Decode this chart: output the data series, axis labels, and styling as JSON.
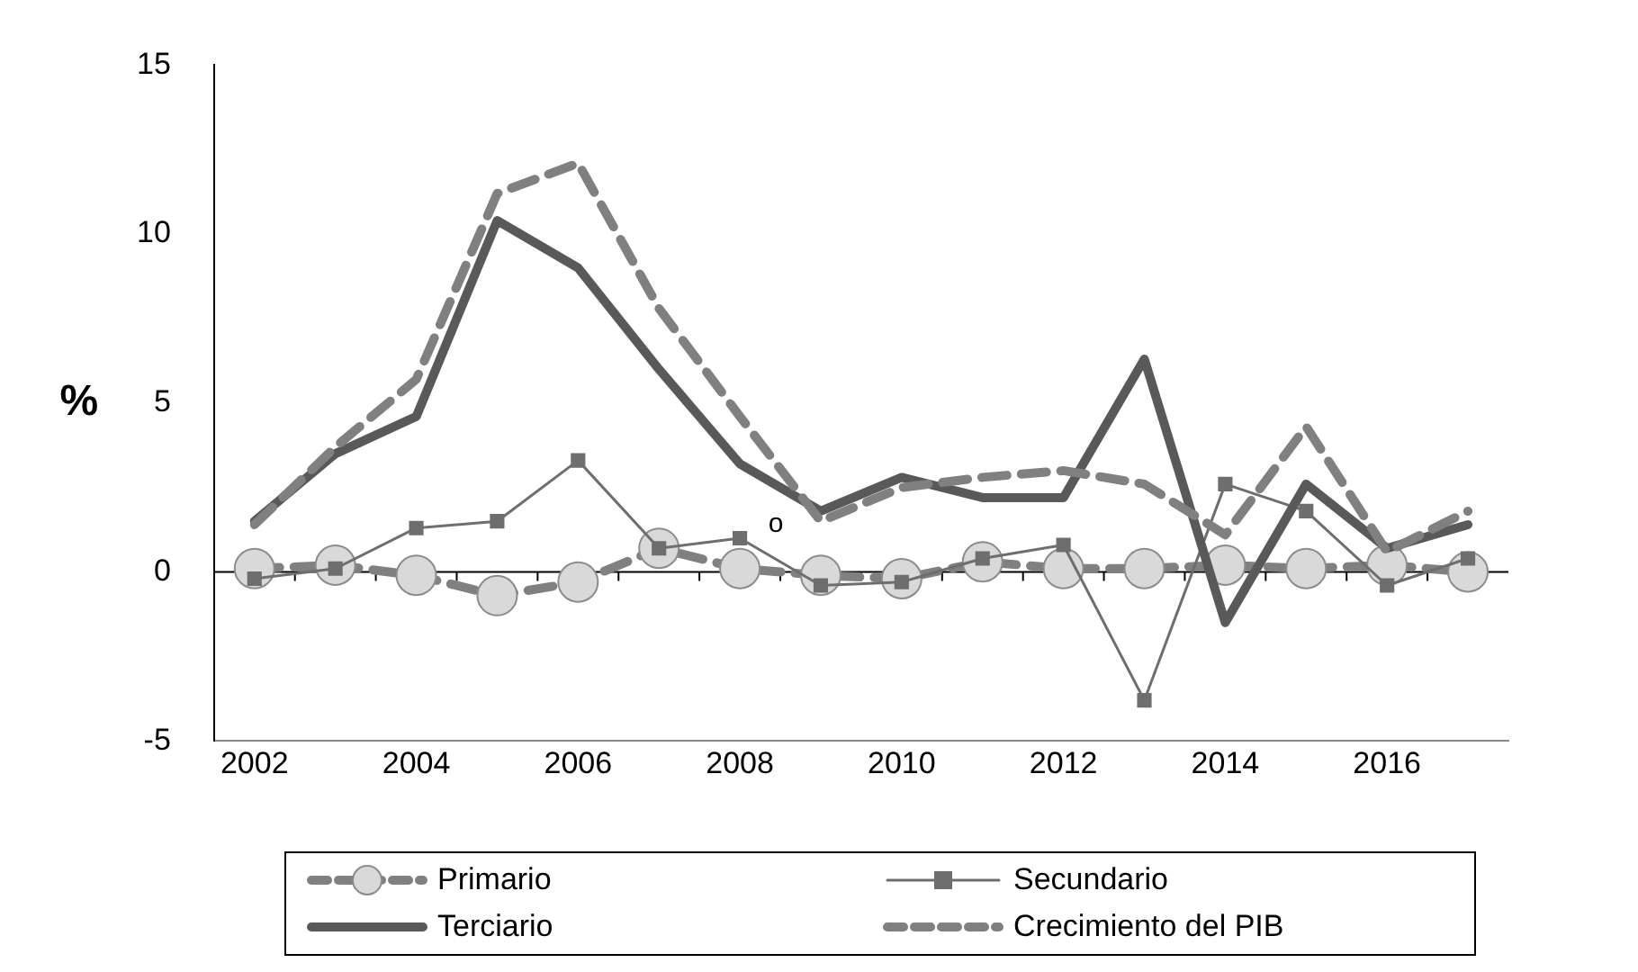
{
  "chart_data": {
    "type": "line",
    "ylabel": "%",
    "categories": [
      "2002",
      null,
      "2004",
      null,
      "2006",
      null,
      "2008",
      null,
      "2010",
      null,
      "2012",
      null,
      "2014",
      null,
      "2016",
      null
    ],
    "series": [
      {
        "name": "Primario",
        "color": "#808080",
        "marker": "circle",
        "line_style": "dashed",
        "values": [
          0.1,
          0.2,
          -0.1,
          -0.7,
          -0.3,
          0.7,
          0.1,
          -0.1,
          -0.2,
          0.3,
          0.1,
          0.1,
          0.2,
          0.1,
          0.2,
          0.0
        ]
      },
      {
        "name": "Secundario",
        "color": "#6e6e6e",
        "marker": "square",
        "line_style": "solid",
        "values": [
          -0.2,
          0.1,
          1.3,
          1.5,
          3.3,
          0.7,
          1.0,
          -0.4,
          -0.3,
          0.4,
          0.8,
          -3.8,
          2.6,
          1.8,
          -0.4,
          0.4
        ]
      },
      {
        "name": "Terciario",
        "color": "#595959",
        "marker": "none",
        "line_style": "solid",
        "values": [
          1.5,
          3.5,
          4.6,
          10.4,
          9.0,
          6.0,
          3.2,
          1.8,
          2.8,
          2.2,
          2.2,
          6.3,
          -1.5,
          2.6,
          0.7,
          1.4
        ]
      },
      {
        "name": "Crecimiento del PIB",
        "color": "#808080",
        "marker": "none",
        "line_style": "dashed",
        "values": [
          1.4,
          3.7,
          5.7,
          11.2,
          12.1,
          7.8,
          4.6,
          1.5,
          2.5,
          2.8,
          3.0,
          2.6,
          1.1,
          4.3,
          0.6,
          1.8
        ]
      }
    ],
    "ylim": [
      -5,
      15
    ],
    "yticks": [
      -5,
      0,
      5,
      10,
      15
    ],
    "ref_lines": [
      {
        "axis": "y",
        "value": 0,
        "color": "#000000"
      }
    ],
    "annotations": [
      {
        "text": "o",
        "x": "2008",
        "y": 1.4
      }
    ],
    "grid": false,
    "legend": "bottom"
  }
}
